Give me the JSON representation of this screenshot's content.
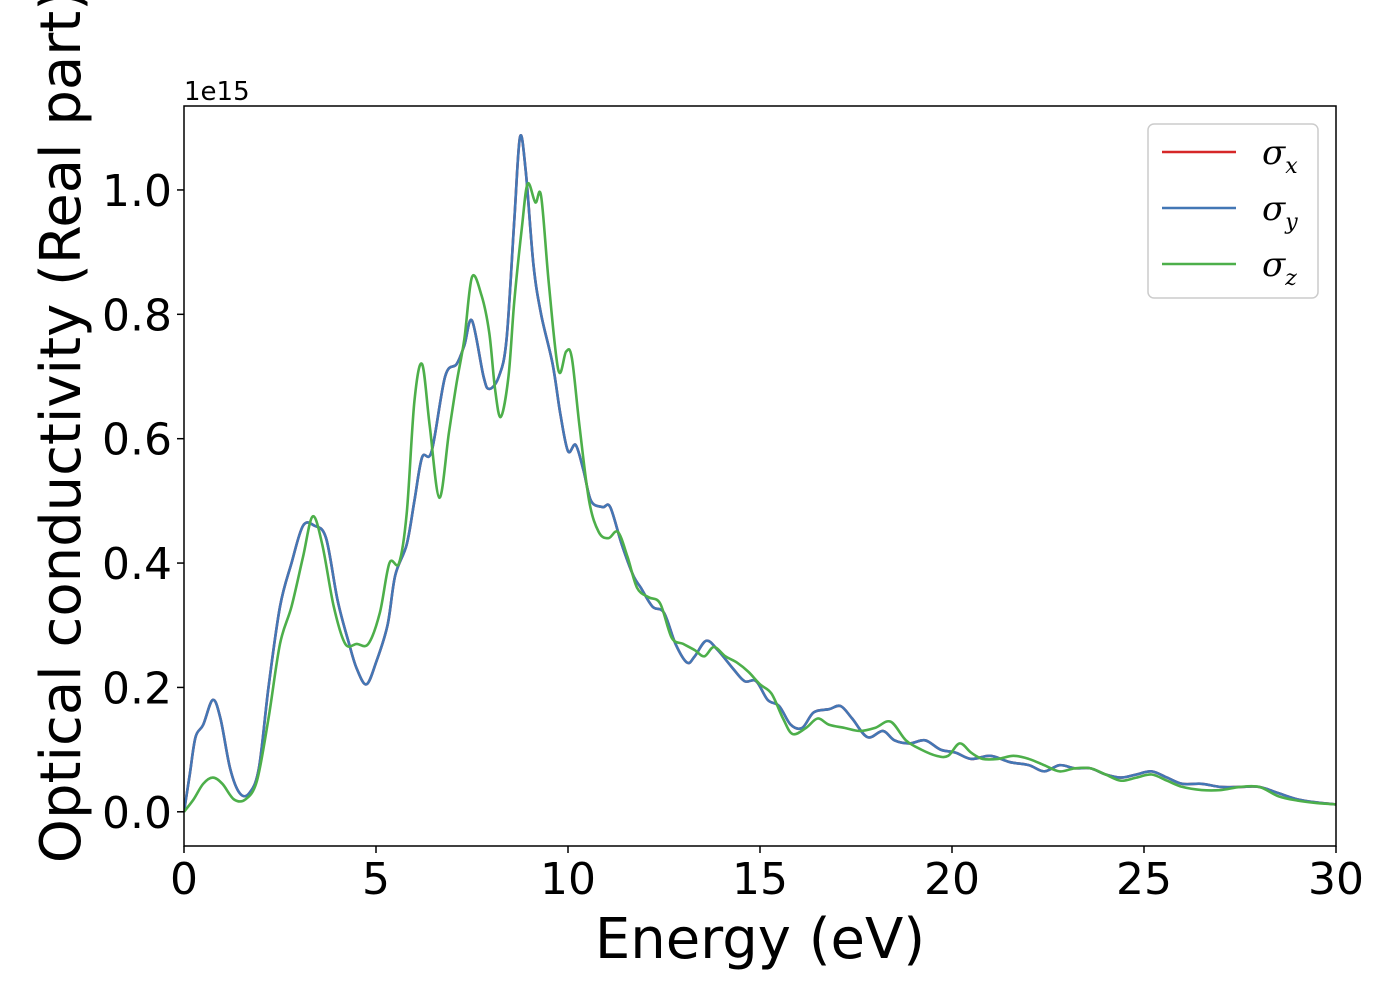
{
  "chart_data": {
    "type": "line",
    "title": "",
    "xlabel": "Energy (eV)",
    "ylabel": "Optical conductivity (Real part)",
    "y_offset_text": "1e15",
    "xlim": [
      0,
      30
    ],
    "ylim": [
      -0.055,
      1.135
    ],
    "x_ticks": [
      0,
      5,
      10,
      15,
      20,
      25,
      30
    ],
    "x_tick_labels": [
      "0",
      "5",
      "10",
      "15",
      "20",
      "25",
      "30"
    ],
    "y_ticks": [
      0.0,
      0.2,
      0.4,
      0.6,
      0.8,
      1.0
    ],
    "y_tick_labels": [
      "0.0",
      "0.2",
      "0.4",
      "0.6",
      "0.8",
      "1.0"
    ],
    "grid": false,
    "legend_position": "top-right",
    "series": [
      {
        "name": "x",
        "color": "#d62728",
        "points": [
          [
            0,
            0
          ],
          [
            0.15,
            0.06
          ],
          [
            0.3,
            0.12
          ],
          [
            0.5,
            0.14
          ],
          [
            0.75,
            0.18
          ],
          [
            0.95,
            0.15
          ],
          [
            1.2,
            0.07
          ],
          [
            1.45,
            0.03
          ],
          [
            1.7,
            0.03
          ],
          [
            1.95,
            0.07
          ],
          [
            2.2,
            0.2
          ],
          [
            2.5,
            0.33
          ],
          [
            2.8,
            0.4
          ],
          [
            3.1,
            0.46
          ],
          [
            3.4,
            0.46
          ],
          [
            3.7,
            0.44
          ],
          [
            4.0,
            0.34
          ],
          [
            4.3,
            0.27
          ],
          [
            4.5,
            0.23
          ],
          [
            4.75,
            0.205
          ],
          [
            5.0,
            0.24
          ],
          [
            5.3,
            0.3
          ],
          [
            5.5,
            0.38
          ],
          [
            5.8,
            0.43
          ],
          [
            6.0,
            0.5
          ],
          [
            6.2,
            0.57
          ],
          [
            6.45,
            0.58
          ],
          [
            6.8,
            0.7
          ],
          [
            7.1,
            0.72
          ],
          [
            7.3,
            0.75
          ],
          [
            7.5,
            0.79
          ],
          [
            7.8,
            0.7
          ],
          [
            7.95,
            0.68
          ],
          [
            8.2,
            0.7
          ],
          [
            8.4,
            0.76
          ],
          [
            8.6,
            0.95
          ],
          [
            8.75,
            1.085
          ],
          [
            8.9,
            1.03
          ],
          [
            9.1,
            0.88
          ],
          [
            9.3,
            0.8
          ],
          [
            9.6,
            0.72
          ],
          [
            9.8,
            0.64
          ],
          [
            10.0,
            0.58
          ],
          [
            10.2,
            0.59
          ],
          [
            10.4,
            0.55
          ],
          [
            10.6,
            0.5
          ],
          [
            10.9,
            0.49
          ],
          [
            11.1,
            0.49
          ],
          [
            11.4,
            0.43
          ],
          [
            11.7,
            0.38
          ],
          [
            11.9,
            0.36
          ],
          [
            12.2,
            0.33
          ],
          [
            12.5,
            0.32
          ],
          [
            12.8,
            0.27
          ],
          [
            13.1,
            0.24
          ],
          [
            13.3,
            0.25
          ],
          [
            13.6,
            0.275
          ],
          [
            13.9,
            0.26
          ],
          [
            14.3,
            0.23
          ],
          [
            14.6,
            0.21
          ],
          [
            14.9,
            0.21
          ],
          [
            15.2,
            0.18
          ],
          [
            15.5,
            0.17
          ],
          [
            15.8,
            0.14
          ],
          [
            16.1,
            0.135
          ],
          [
            16.4,
            0.16
          ],
          [
            16.8,
            0.165
          ],
          [
            17.1,
            0.17
          ],
          [
            17.4,
            0.15
          ],
          [
            17.8,
            0.12
          ],
          [
            18.2,
            0.13
          ],
          [
            18.5,
            0.115
          ],
          [
            18.9,
            0.11
          ],
          [
            19.3,
            0.115
          ],
          [
            19.7,
            0.1
          ],
          [
            20.1,
            0.095
          ],
          [
            20.5,
            0.085
          ],
          [
            21.0,
            0.09
          ],
          [
            21.5,
            0.08
          ],
          [
            22.0,
            0.075
          ],
          [
            22.4,
            0.065
          ],
          [
            22.8,
            0.075
          ],
          [
            23.2,
            0.07
          ],
          [
            23.6,
            0.07
          ],
          [
            24.0,
            0.06
          ],
          [
            24.4,
            0.055
          ],
          [
            24.8,
            0.06
          ],
          [
            25.2,
            0.065
          ],
          [
            25.6,
            0.055
          ],
          [
            26.0,
            0.045
          ],
          [
            26.5,
            0.045
          ],
          [
            27.0,
            0.04
          ],
          [
            27.5,
            0.04
          ],
          [
            28.0,
            0.04
          ],
          [
            28.5,
            0.03
          ],
          [
            29.0,
            0.02
          ],
          [
            29.5,
            0.015
          ],
          [
            30,
            0.012
          ]
        ]
      },
      {
        "name": "y",
        "color": "#4377b5",
        "points": [
          [
            0,
            0
          ],
          [
            0.15,
            0.06
          ],
          [
            0.3,
            0.12
          ],
          [
            0.5,
            0.14
          ],
          [
            0.75,
            0.18
          ],
          [
            0.95,
            0.15
          ],
          [
            1.2,
            0.07
          ],
          [
            1.45,
            0.03
          ],
          [
            1.7,
            0.03
          ],
          [
            1.95,
            0.07
          ],
          [
            2.2,
            0.2
          ],
          [
            2.5,
            0.33
          ],
          [
            2.8,
            0.4
          ],
          [
            3.1,
            0.46
          ],
          [
            3.4,
            0.46
          ],
          [
            3.7,
            0.44
          ],
          [
            4.0,
            0.34
          ],
          [
            4.3,
            0.27
          ],
          [
            4.5,
            0.23
          ],
          [
            4.75,
            0.205
          ],
          [
            5.0,
            0.24
          ],
          [
            5.3,
            0.3
          ],
          [
            5.5,
            0.38
          ],
          [
            5.8,
            0.43
          ],
          [
            6.0,
            0.5
          ],
          [
            6.2,
            0.57
          ],
          [
            6.45,
            0.58
          ],
          [
            6.8,
            0.7
          ],
          [
            7.1,
            0.72
          ],
          [
            7.3,
            0.75
          ],
          [
            7.5,
            0.79
          ],
          [
            7.8,
            0.7
          ],
          [
            7.95,
            0.68
          ],
          [
            8.2,
            0.7
          ],
          [
            8.4,
            0.76
          ],
          [
            8.6,
            0.95
          ],
          [
            8.75,
            1.085
          ],
          [
            8.9,
            1.03
          ],
          [
            9.1,
            0.88
          ],
          [
            9.3,
            0.8
          ],
          [
            9.6,
            0.72
          ],
          [
            9.8,
            0.64
          ],
          [
            10.0,
            0.58
          ],
          [
            10.2,
            0.59
          ],
          [
            10.4,
            0.55
          ],
          [
            10.6,
            0.5
          ],
          [
            10.9,
            0.49
          ],
          [
            11.1,
            0.49
          ],
          [
            11.4,
            0.43
          ],
          [
            11.7,
            0.38
          ],
          [
            11.9,
            0.36
          ],
          [
            12.2,
            0.33
          ],
          [
            12.5,
            0.32
          ],
          [
            12.8,
            0.27
          ],
          [
            13.1,
            0.24
          ],
          [
            13.3,
            0.25
          ],
          [
            13.6,
            0.275
          ],
          [
            13.9,
            0.26
          ],
          [
            14.3,
            0.23
          ],
          [
            14.6,
            0.21
          ],
          [
            14.9,
            0.21
          ],
          [
            15.2,
            0.18
          ],
          [
            15.5,
            0.17
          ],
          [
            15.8,
            0.14
          ],
          [
            16.1,
            0.135
          ],
          [
            16.4,
            0.16
          ],
          [
            16.8,
            0.165
          ],
          [
            17.1,
            0.17
          ],
          [
            17.4,
            0.15
          ],
          [
            17.8,
            0.12
          ],
          [
            18.2,
            0.13
          ],
          [
            18.5,
            0.115
          ],
          [
            18.9,
            0.11
          ],
          [
            19.3,
            0.115
          ],
          [
            19.7,
            0.1
          ],
          [
            20.1,
            0.095
          ],
          [
            20.5,
            0.085
          ],
          [
            21.0,
            0.09
          ],
          [
            21.5,
            0.08
          ],
          [
            22.0,
            0.075
          ],
          [
            22.4,
            0.065
          ],
          [
            22.8,
            0.075
          ],
          [
            23.2,
            0.07
          ],
          [
            23.6,
            0.07
          ],
          [
            24.0,
            0.06
          ],
          [
            24.4,
            0.055
          ],
          [
            24.8,
            0.06
          ],
          [
            25.2,
            0.065
          ],
          [
            25.6,
            0.055
          ],
          [
            26.0,
            0.045
          ],
          [
            26.5,
            0.045
          ],
          [
            27.0,
            0.04
          ],
          [
            27.5,
            0.04
          ],
          [
            28.0,
            0.04
          ],
          [
            28.5,
            0.03
          ],
          [
            29.0,
            0.02
          ],
          [
            29.5,
            0.015
          ],
          [
            30,
            0.012
          ]
        ]
      },
      {
        "name": "z",
        "color": "#4daf4a",
        "points": [
          [
            0,
            0
          ],
          [
            0.25,
            0.02
          ],
          [
            0.5,
            0.045
          ],
          [
            0.75,
            0.055
          ],
          [
            1.0,
            0.045
          ],
          [
            1.3,
            0.02
          ],
          [
            1.6,
            0.02
          ],
          [
            1.9,
            0.05
          ],
          [
            2.2,
            0.15
          ],
          [
            2.5,
            0.27
          ],
          [
            2.8,
            0.33
          ],
          [
            3.1,
            0.41
          ],
          [
            3.35,
            0.475
          ],
          [
            3.6,
            0.43
          ],
          [
            3.9,
            0.33
          ],
          [
            4.2,
            0.27
          ],
          [
            4.5,
            0.27
          ],
          [
            4.8,
            0.27
          ],
          [
            5.1,
            0.32
          ],
          [
            5.35,
            0.4
          ],
          [
            5.6,
            0.4
          ],
          [
            5.8,
            0.48
          ],
          [
            6.0,
            0.66
          ],
          [
            6.2,
            0.72
          ],
          [
            6.4,
            0.62
          ],
          [
            6.65,
            0.505
          ],
          [
            6.9,
            0.61
          ],
          [
            7.1,
            0.69
          ],
          [
            7.3,
            0.76
          ],
          [
            7.5,
            0.86
          ],
          [
            7.75,
            0.83
          ],
          [
            7.95,
            0.77
          ],
          [
            8.1,
            0.68
          ],
          [
            8.25,
            0.635
          ],
          [
            8.45,
            0.7
          ],
          [
            8.6,
            0.82
          ],
          [
            8.8,
            0.94
          ],
          [
            8.95,
            1.01
          ],
          [
            9.15,
            0.98
          ],
          [
            9.3,
            0.99
          ],
          [
            9.5,
            0.85
          ],
          [
            9.75,
            0.71
          ],
          [
            9.95,
            0.74
          ],
          [
            10.1,
            0.73
          ],
          [
            10.3,
            0.62
          ],
          [
            10.55,
            0.5
          ],
          [
            10.8,
            0.45
          ],
          [
            11.05,
            0.44
          ],
          [
            11.3,
            0.45
          ],
          [
            11.55,
            0.41
          ],
          [
            11.8,
            0.36
          ],
          [
            12.1,
            0.345
          ],
          [
            12.4,
            0.335
          ],
          [
            12.7,
            0.28
          ],
          [
            13.0,
            0.27
          ],
          [
            13.3,
            0.26
          ],
          [
            13.55,
            0.25
          ],
          [
            13.8,
            0.265
          ],
          [
            14.1,
            0.25
          ],
          [
            14.4,
            0.24
          ],
          [
            14.7,
            0.225
          ],
          [
            15.0,
            0.205
          ],
          [
            15.3,
            0.19
          ],
          [
            15.6,
            0.15
          ],
          [
            15.85,
            0.125
          ],
          [
            16.2,
            0.135
          ],
          [
            16.5,
            0.15
          ],
          [
            16.8,
            0.14
          ],
          [
            17.2,
            0.135
          ],
          [
            17.6,
            0.13
          ],
          [
            18.0,
            0.135
          ],
          [
            18.4,
            0.145
          ],
          [
            18.8,
            0.115
          ],
          [
            19.2,
            0.1
          ],
          [
            19.6,
            0.09
          ],
          [
            19.9,
            0.09
          ],
          [
            20.2,
            0.11
          ],
          [
            20.5,
            0.095
          ],
          [
            20.8,
            0.085
          ],
          [
            21.2,
            0.085
          ],
          [
            21.6,
            0.09
          ],
          [
            22.0,
            0.085
          ],
          [
            22.4,
            0.075
          ],
          [
            22.8,
            0.065
          ],
          [
            23.2,
            0.07
          ],
          [
            23.6,
            0.07
          ],
          [
            24.0,
            0.06
          ],
          [
            24.4,
            0.05
          ],
          [
            24.8,
            0.055
          ],
          [
            25.2,
            0.06
          ],
          [
            25.6,
            0.05
          ],
          [
            26.0,
            0.04
          ],
          [
            26.5,
            0.035
          ],
          [
            27.0,
            0.035
          ],
          [
            27.5,
            0.04
          ],
          [
            28.0,
            0.04
          ],
          [
            28.5,
            0.025
          ],
          [
            29.0,
            0.018
          ],
          [
            29.5,
            0.014
          ],
          [
            30,
            0.012
          ]
        ]
      }
    ]
  }
}
